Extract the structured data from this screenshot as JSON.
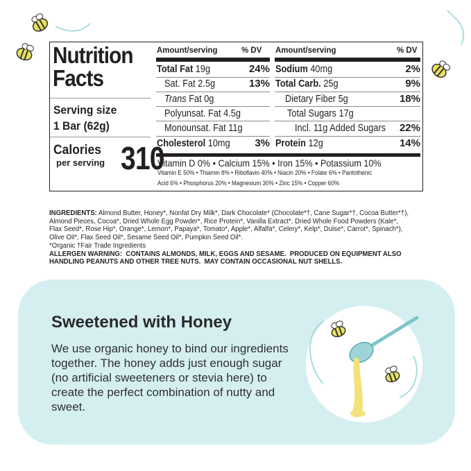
{
  "nutrition": {
    "title_line1": "Nutrition",
    "title_line2": "Facts",
    "serving_label": "Serving size",
    "serving_value": "1 Bar (62g)",
    "calories_label": "Calories",
    "calories_sub": "per serving",
    "calories": "310",
    "col_header_amount": "Amount/serving",
    "col_header_dv": "% DV",
    "left_rows": [
      {
        "name": "Total Fat",
        "amount": "19g",
        "dv": "24%"
      },
      {
        "name": "Sat. Fat",
        "amount": "2.5g",
        "dv": "13%"
      },
      {
        "name": "Trans",
        "amount": "Fat 0g",
        "dv": ""
      },
      {
        "name": "Polyunsat. Fat",
        "amount": "4.5g",
        "dv": ""
      },
      {
        "name": "Monounsat. Fat",
        "amount": "11g",
        "dv": ""
      },
      {
        "name": "Cholesterol",
        "amount": "10mg",
        "dv": "3%"
      }
    ],
    "right_rows": [
      {
        "name": "Sodium",
        "amount": "40mg",
        "dv": "2%"
      },
      {
        "name": "Total Carb.",
        "amount": "25g",
        "dv": "9%"
      },
      {
        "name": "Dietary Fiber",
        "amount": "5g",
        "dv": "18%"
      },
      {
        "name": "Total Sugars",
        "amount": "17g",
        "dv": ""
      },
      {
        "name": "Incl. 11g Added Sugars",
        "amount": "",
        "dv": "22%"
      },
      {
        "name": "Protein",
        "amount": "12g",
        "dv": "14%"
      }
    ],
    "vitamins_main": "Vitamin D 0% • Calcium 15% • Iron 15% • Potassium 10%",
    "vitamins_line1": "Vitamin E 50% • Thiamin 8% • Riboflavin 40% • Niacin 20% • Folate 6% • Pantothenic",
    "vitamins_line2": "Acid 6% • Phosphorus 20% • Magnesium 30% • Zinc 15% • Copper 60%"
  },
  "ingredients": {
    "label": "INGREDIENTS:",
    "text": " Almond Butter, Honey*, Nonfat Dry Milk*, Dark Chocolate* (Chocolate*†, Cane Sugar*†, Cocoa Butter*†), Almond Pieces, Cocoa*, Dried Whole Egg Powder*, Rice Protein*, Vanilla Extract*, Dried Whole Food Powders (Kale*, Flax Seed*, Rose Hip*, Orange*, Lemon*, Papaya*, Tomato*, Apple*, Alfalfa*, Celery*, Kelp*, Dulse*, Carrot*, Spinach*), Olive Oil*, Flax Seed Oil*, Sesame Seed Oil*, Pumpkin Seed Oil*.",
    "footnote": "*Organic †Fair Trade Ingredients",
    "allergen": "ALLERGEN WARNING:  CONTAINS ALMONDS, MILK, EGGS AND SESAME.  PRODUCED ON EQUIPMENT ALSO HANDLING PEANUTS AND OTHER TREE NUTS.  MAY CONTAIN OCCASIONAL NUT SHELLS."
  },
  "feature": {
    "title": "Sweetened with Honey",
    "body": "We use organic honey to bind our ingredients together. The honey adds just enough sugar (no artificial sweeteners or stevia here) to create the perfect combination of nutty and sweet.",
    "background_color": "#d5eff1",
    "illustration": "honey-dipper-with-bees"
  }
}
